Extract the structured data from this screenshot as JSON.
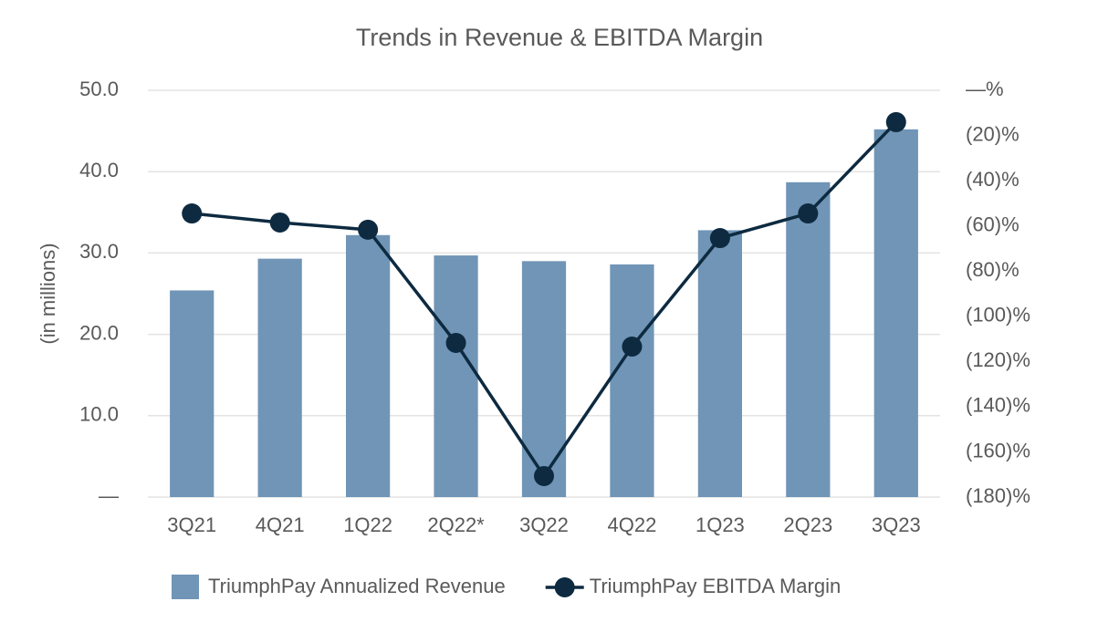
{
  "chart_data": {
    "type": "combo",
    "title": "Trends in Revenue & EBITDA Margin",
    "y_label": "(in millions)",
    "categories": [
      "3Q21",
      "4Q21",
      "1Q22",
      "2Q22*",
      "3Q22",
      "4Q22",
      "1Q23",
      "2Q23",
      "3Q23"
    ],
    "series": [
      {
        "name": "TriumphPay Annualized Revenue",
        "type": "bar",
        "color": "#7095b6",
        "values": [
          25.4,
          29.3,
          32.2,
          29.7,
          29.0,
          28.6,
          32.8,
          38.7,
          45.2
        ]
      },
      {
        "name": "TriumphPay EBITDA Margin",
        "type": "line",
        "axis": "y2",
        "color": "#0d2a40",
        "values": [
          -54.5,
          -58.5,
          -61.7,
          -111.8,
          -170.7,
          -113.4,
          -65.4,
          -54.5,
          -14.1
        ]
      }
    ],
    "ylim": [
      0,
      50
    ],
    "yticks": [
      {
        "value": 0,
        "label": "—"
      },
      {
        "value": 10,
        "label": "10.0"
      },
      {
        "value": 20,
        "label": "20.0"
      },
      {
        "value": 30,
        "label": "30.0"
      },
      {
        "value": 40,
        "label": "40.0"
      },
      {
        "value": 50,
        "label": "50.0"
      }
    ],
    "y2lim": [
      -180,
      0
    ],
    "y2ticks": [
      {
        "value": 0,
        "label": "—%"
      },
      {
        "value": -20,
        "label": "(20)%"
      },
      {
        "value": -40,
        "label": "(40)%"
      },
      {
        "value": -60,
        "label": "(60)%"
      },
      {
        "value": -80,
        "label": "(80)%"
      },
      {
        "value": -100,
        "label": "(100)%"
      },
      {
        "value": -120,
        "label": "(120)%"
      },
      {
        "value": -140,
        "label": "(140)%"
      },
      {
        "value": -160,
        "label": "(160)%"
      },
      {
        "value": -180,
        "label": "(180)%"
      }
    ],
    "grid": true,
    "legend": "bottom"
  }
}
